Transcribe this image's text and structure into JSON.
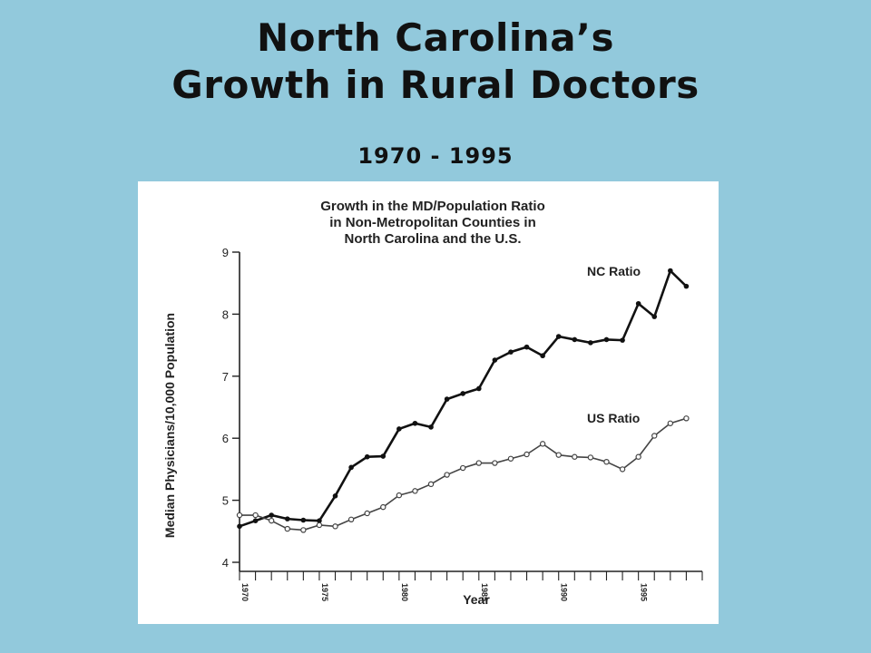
{
  "slide": {
    "title_line1": "North Carolina’s",
    "title_line2": "Growth in Rural Doctors",
    "subtitle": "1970 - 1995"
  },
  "colors": {
    "background": "#92c9dc",
    "panel": "#ffffff",
    "nc_line": "#111111",
    "us_line": "#444444"
  },
  "chart_data": {
    "type": "line",
    "title_lines": [
      "Growth in the MD/Population Ratio",
      "in Non-Metropolitan Counties in",
      "North Carolina and the U.S."
    ],
    "xlabel": "Year",
    "ylabel": "Median Physicians/10,000 Population",
    "xlim": [
      1970,
      1999
    ],
    "ylim": [
      4,
      9
    ],
    "y_ticks": [
      4,
      5,
      6,
      7,
      8,
      9
    ],
    "x_ticks": [
      1970,
      1975,
      1980,
      1985,
      1990,
      1995
    ],
    "x": [
      1970,
      1971,
      1972,
      1973,
      1974,
      1975,
      1976,
      1977,
      1978,
      1979,
      1980,
      1981,
      1982,
      1983,
      1984,
      1985,
      1986,
      1987,
      1988,
      1989,
      1990,
      1991,
      1992,
      1993,
      1994,
      1995,
      1996,
      1997,
      1998,
      1999
    ],
    "series": [
      {
        "name": "NC Ratio",
        "marker": "filled",
        "values": [
          4.58,
          4.67,
          4.76,
          4.7,
          4.68,
          4.67,
          5.07,
          5.53,
          5.7,
          5.71,
          6.15,
          6.24,
          6.18,
          6.63,
          6.72,
          6.8,
          7.26,
          7.39,
          7.47,
          7.33,
          7.64,
          7.59,
          7.54,
          7.59,
          7.58,
          8.17,
          7.96,
          8.7,
          8.45,
          null
        ]
      },
      {
        "name": "US Ratio",
        "marker": "open",
        "values": [
          4.76,
          4.76,
          4.67,
          4.54,
          4.52,
          4.6,
          4.58,
          4.69,
          4.79,
          4.89,
          5.08,
          5.15,
          5.26,
          5.41,
          5.52,
          5.6,
          5.6,
          5.67,
          5.74,
          5.91,
          5.73,
          5.7,
          5.69,
          5.62,
          5.5,
          5.7,
          6.04,
          6.24,
          6.32,
          null
        ]
      }
    ],
    "legend": "inline labels above line ends",
    "grid": false
  }
}
